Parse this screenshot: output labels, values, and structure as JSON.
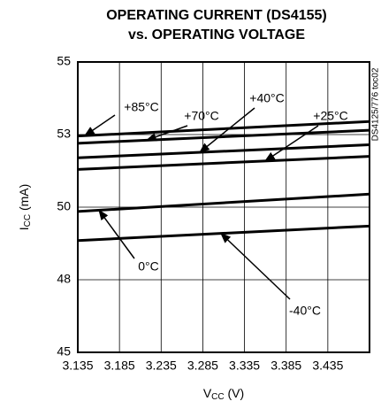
{
  "chart_data": {
    "type": "line",
    "title": [
      "OPERATING CURRENT (DS4155)",
      "vs. OPERATING VOLTAGE"
    ],
    "xlabel": [
      "V",
      "CC",
      " (V)"
    ],
    "ylabel": [
      "I",
      "CC",
      " (mA)"
    ],
    "side_note": "DS4125/776 toc02",
    "x": [
      3.135,
      3.485
    ],
    "xlim": [
      3.135,
      3.485
    ],
    "xticks": [
      3.135,
      3.185,
      3.235,
      3.285,
      3.335,
      3.385,
      3.435
    ],
    "ylim": [
      45,
      55
    ],
    "yticks": [
      45,
      {
        "value": 47.5,
        "label": "48"
      },
      50,
      {
        "value": 52.5,
        "label": "53"
      },
      55
    ],
    "grid": true,
    "series": [
      {
        "name": "+85°C",
        "color": "#000000",
        "values": [
          52.45,
          52.95
        ]
      },
      {
        "name": "+70°C",
        "color": "#000000",
        "values": [
          52.2,
          52.65
        ]
      },
      {
        "name": "+40°C",
        "color": "#000000",
        "values": [
          51.7,
          52.15
        ]
      },
      {
        "name": "+25°C",
        "color": "#000000",
        "values": [
          51.3,
          51.75
        ]
      },
      {
        "name": "0°C",
        "color": "#000000",
        "values": [
          49.85,
          50.45
        ]
      },
      {
        "name": "-40°C",
        "color": "#000000",
        "values": [
          48.85,
          49.35
        ]
      }
    ]
  }
}
